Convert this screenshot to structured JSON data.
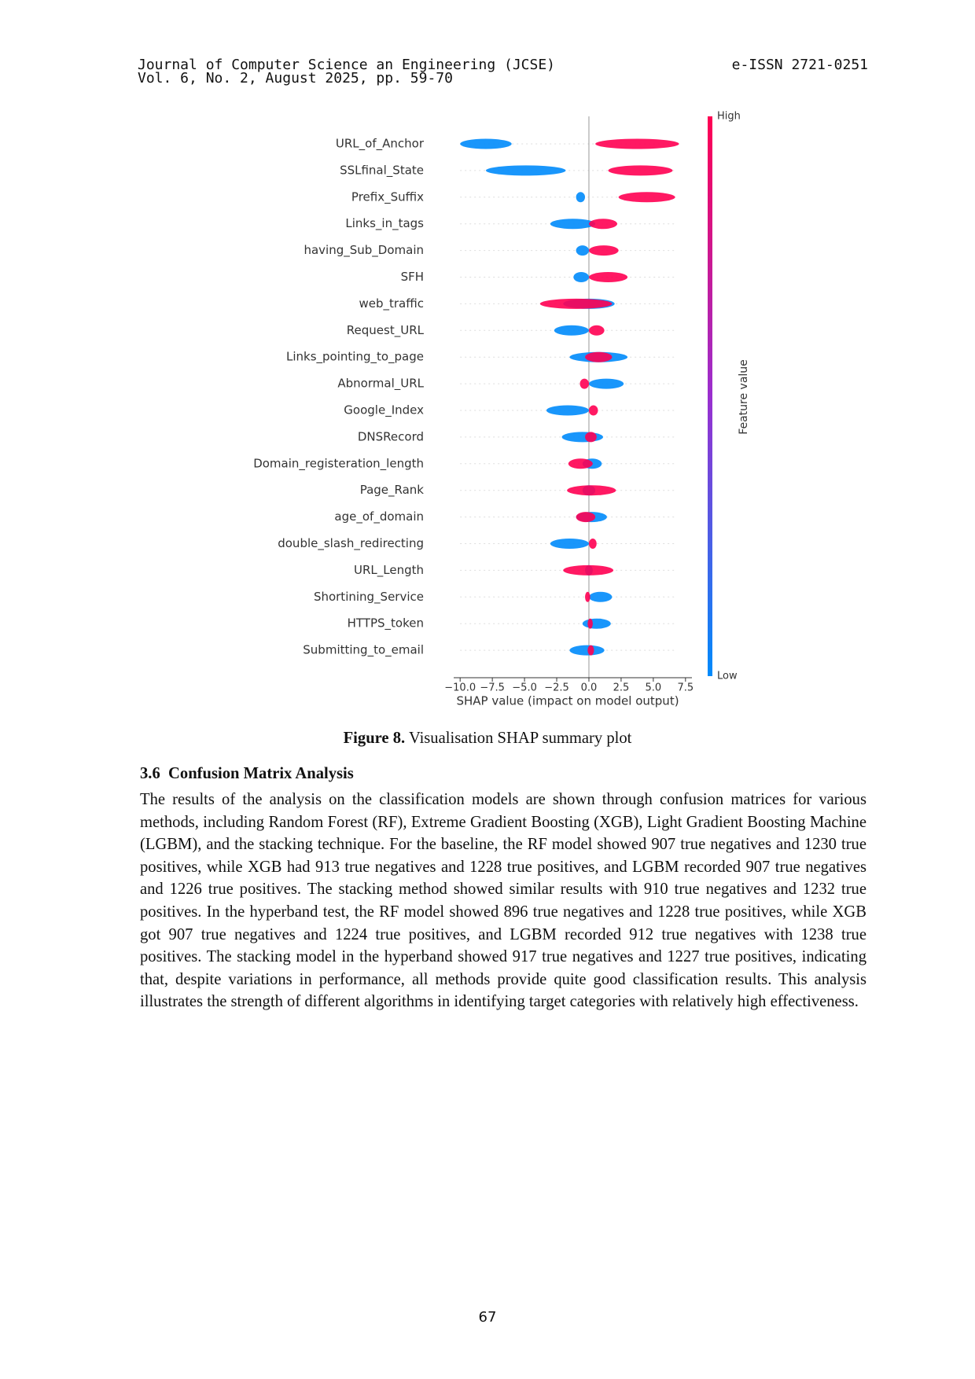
{
  "header": {
    "journal": "Journal of Computer Science an Engineering (JCSE)",
    "volume": "Vol. 6, No. 2, August 2025, pp. 59-70",
    "issn": "e-ISSN 2721-0251"
  },
  "figure": {
    "chart_data": {
      "type": "beeswarm",
      "x_label": "SHAP value (impact on model output)",
      "colorbar_label": "Feature value",
      "categories": [
        "URL_of_Anchor",
        "SSLfinal_State",
        "Prefix_Suffix",
        "Links_in_tags",
        "having_Sub_Domain",
        "SFH",
        "web_traffic",
        "Request_URL",
        "Links_pointing_to_page",
        "Abnormal_URL",
        "Google_Index",
        "DNSRecord",
        "Domain_registeration_length",
        "Page_Rank",
        "age_of_domain",
        "double_slash_redirecting",
        "URL_Length",
        "Shortining_Service",
        "HTTPS_token",
        "Submitting_to_email"
      ],
      "series": [
        {
          "name": "High",
          "color": "#ff0052",
          "min": [
            0.5,
            1.5,
            2.3,
            0,
            0,
            0,
            -3.8,
            0,
            -0.3,
            -0.7,
            0,
            -0.3,
            -1.6,
            -1.7,
            -1,
            0,
            -2,
            -0.3,
            -0.1,
            -0.1
          ],
          "max": [
            7,
            6.5,
            6.7,
            2.2,
            2.3,
            3,
            1.8,
            1.2,
            1.8,
            0,
            0.7,
            0.6,
            0.3,
            2.1,
            0.5,
            0.6,
            1.9,
            0.1,
            0.3,
            0.4
          ]
        },
        {
          "name": "Low",
          "color": "#008bfb",
          "min": [
            -10,
            -8,
            -1,
            -3,
            -1,
            -1.2,
            -2,
            -2.7,
            -1.5,
            0,
            -3.3,
            -2.1,
            -0.5,
            -0.5,
            -1,
            -3,
            -0.3,
            0,
            -0.5,
            -1.5
          ],
          "max": [
            -6,
            -1.8,
            -0.3,
            0.5,
            0,
            0,
            2,
            0,
            3,
            2.7,
            0,
            1.1,
            1,
            0.5,
            1.4,
            0,
            0.3,
            1.8,
            1.7,
            1.2
          ]
        }
      ],
      "xlim": [
        -10.5,
        8
      ],
      "xticks": [
        {
          "value": -10,
          "label": "−10.0"
        },
        {
          "value": -7.5,
          "label": "−7.5"
        },
        {
          "value": -5,
          "label": "−5.0"
        },
        {
          "value": -2.5,
          "label": "−2.5"
        },
        {
          "value": 0,
          "label": "0.0"
        },
        2.5,
        {
          "value": 5,
          "label": "5.0"
        },
        7.5
      ]
    },
    "caption": {
      "label": "Figure 8.",
      "text": "Visualisation SHAP summary plot"
    }
  },
  "section": {
    "heading": "3.6  Confusion Matrix Analysis",
    "paragraph": "The results of the analysis on the classification models are shown through confusion matrices for various methods, including Random Forest (RF), Extreme Gradient Boosting (XGB), Light Gradient Boosting Machine (LGBM), and the stacking technique. For the baseline, the RF model showed 907 true negatives and 1230 true positives, while XGB had 913 true negatives and 1228 true positives, and LGBM recorded 907 true negatives and 1226 true positives. The stacking method showed similar results with 910 true negatives and 1232 true positives. In the hyperband test, the RF model showed 896 true negatives and 1228 true positives, while XGB got 907 true negatives and 1224 true positives, and LGBM recorded 912 true negatives with 1238 true positives. The stacking model in the hyperband showed 917 true negatives and 1227 true positives, indicating that, despite variations in performance, all methods provide quite good classification results. This analysis illustrates the strength of different algorithms in identifying target categories with relatively high effectiveness."
  },
  "page_number": "67"
}
